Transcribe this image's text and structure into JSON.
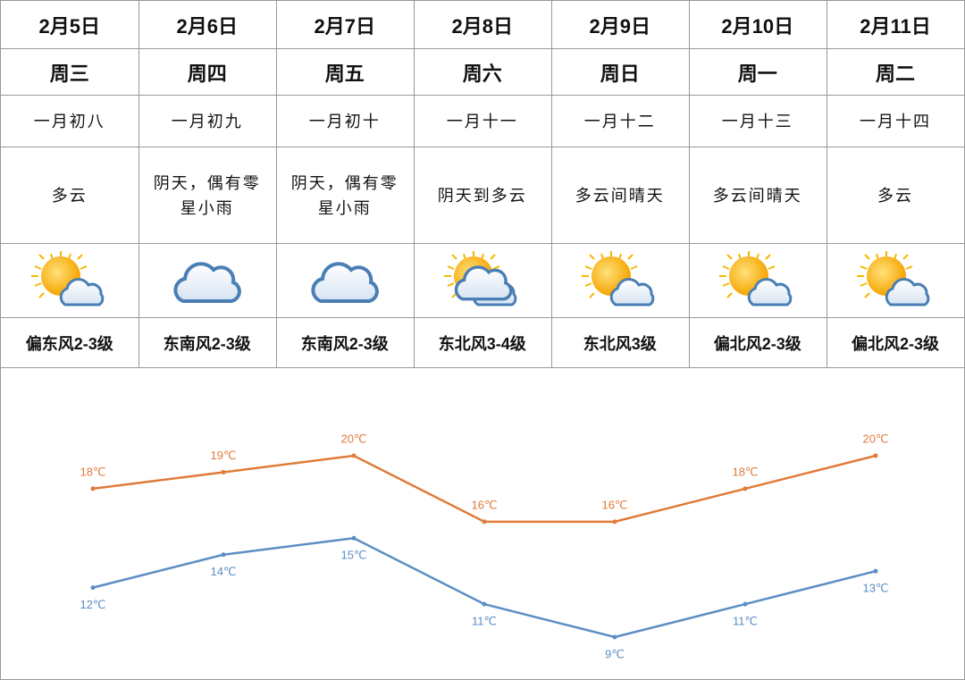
{
  "table": {
    "columns": [
      {
        "date": "2月5日",
        "weekday": "周三",
        "lunar": "一月初八",
        "weather": "多云",
        "wind": "偏东风2-3级"
      },
      {
        "date": "2月6日",
        "weekday": "周四",
        "lunar": "一月初九",
        "weather": "阴天，偶有零星小雨",
        "wind": "东南风2-3级"
      },
      {
        "date": "2月7日",
        "weekday": "周五",
        "lunar": "一月初十",
        "weather": "阴天，偶有零星小雨",
        "wind": "东南风2-3级"
      },
      {
        "date": "2月8日",
        "weekday": "周六",
        "lunar": "一月十一",
        "weather": "阴天到多云",
        "wind": "东北风3-4级"
      },
      {
        "date": "2月9日",
        "weekday": "周日",
        "lunar": "一月十二",
        "weather": "多云间晴天",
        "wind": "东北风3级"
      },
      {
        "date": "2月10日",
        "weekday": "周一",
        "lunar": "一月十三",
        "weather": "多云间晴天",
        "wind": "偏北风2-3级"
      },
      {
        "date": "2月11日",
        "weekday": "周二",
        "lunar": "一月十四",
        "weather": "多云",
        "wind": "偏北风2-3级"
      }
    ]
  },
  "chart_data": {
    "type": "line",
    "series": [
      {
        "color": "#e07b39",
        "values": [
          18,
          19,
          20,
          16,
          16,
          18,
          20
        ],
        "value_labels": [
          "18℃",
          "19℃",
          "20℃",
          "16℃",
          "16℃",
          "18℃",
          "20℃"
        ]
      },
      {
        "color": "#5b8ec4",
        "values": [
          12,
          14,
          15,
          11,
          9,
          11,
          13
        ],
        "value_labels": [
          "12℃",
          "14℃",
          "15℃",
          "11℃",
          "9℃",
          "11℃",
          "13℃"
        ]
      }
    ]
  }
}
